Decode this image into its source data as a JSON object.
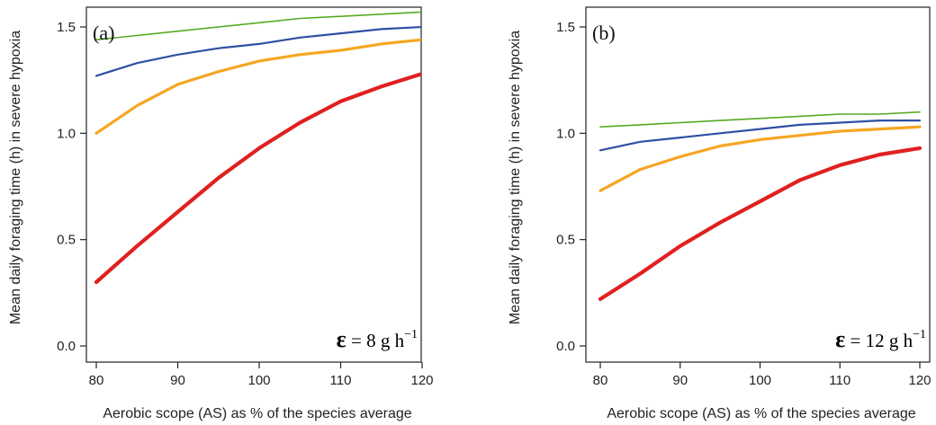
{
  "chart_data": [
    {
      "type": "line",
      "panel_label": "(a)",
      "xlabel": "Aerobic scope (AS) as % of the species average",
      "ylabel": "Mean daily foraging time (h) in severe hypoxia",
      "xlim": [
        80,
        120
      ],
      "ylim": [
        0,
        1.5
      ],
      "xticks": [
        80,
        90,
        100,
        110,
        120
      ],
      "xtick_labels": [
        "80",
        "90",
        "100",
        "110",
        "120"
      ],
      "yticks": [
        0.0,
        0.5,
        1.0,
        1.5
      ],
      "ytick_labels": [
        "0.0",
        "0.5",
        "1.0",
        "1.5"
      ],
      "grid": false,
      "annotation": {
        "symbol": "ε",
        "text": " = 8 g h",
        "sup": "−1"
      },
      "x": [
        80,
        85,
        90,
        95,
        100,
        105,
        110,
        115,
        120
      ],
      "series": [
        {
          "color": "#55aa22",
          "width": 1.6,
          "values": [
            1.44,
            1.46,
            1.48,
            1.5,
            1.52,
            1.54,
            1.55,
            1.56,
            1.57
          ]
        },
        {
          "color": "#2f4fa3",
          "width": 2.2,
          "values": [
            1.27,
            1.33,
            1.37,
            1.4,
            1.42,
            1.45,
            1.47,
            1.49,
            1.5
          ]
        },
        {
          "color": "#f5a623",
          "width": 3.2,
          "values": [
            1.0,
            1.13,
            1.23,
            1.29,
            1.34,
            1.37,
            1.39,
            1.42,
            1.44
          ]
        },
        {
          "color": "#e02020",
          "width": 4.2,
          "values": [
            0.3,
            0.47,
            0.63,
            0.79,
            0.93,
            1.05,
            1.15,
            1.22,
            1.28
          ]
        }
      ]
    },
    {
      "type": "line",
      "panel_label": "(b)",
      "xlabel": "Aerobic scope (AS) as % of the species average",
      "ylabel": "Mean daily foraging time (h) in severe hypoxia",
      "xlim": [
        80,
        120
      ],
      "ylim": [
        0,
        1.5
      ],
      "xticks": [
        80,
        90,
        100,
        110,
        120
      ],
      "xtick_labels": [
        "80",
        "90",
        "100",
        "110",
        "120"
      ],
      "yticks": [
        0.0,
        0.5,
        1.0,
        1.5
      ],
      "ytick_labels": [
        "0.0",
        "0.5",
        "1.0",
        "1.5"
      ],
      "grid": false,
      "annotation": {
        "symbol": "ε",
        "text": " = 12 g h",
        "sup": "−1"
      },
      "x": [
        80,
        85,
        90,
        95,
        100,
        105,
        110,
        115,
        120
      ],
      "series": [
        {
          "color": "#55aa22",
          "width": 1.6,
          "values": [
            1.03,
            1.04,
            1.05,
            1.06,
            1.07,
            1.08,
            1.09,
            1.09,
            1.1
          ]
        },
        {
          "color": "#2f4fa3",
          "width": 2.2,
          "values": [
            0.92,
            0.96,
            0.98,
            1.0,
            1.02,
            1.04,
            1.05,
            1.06,
            1.06
          ]
        },
        {
          "color": "#f5a623",
          "width": 3.2,
          "values": [
            0.73,
            0.83,
            0.89,
            0.94,
            0.97,
            0.99,
            1.01,
            1.02,
            1.03
          ]
        },
        {
          "color": "#e02020",
          "width": 4.2,
          "values": [
            0.22,
            0.34,
            0.47,
            0.58,
            0.68,
            0.78,
            0.85,
            0.9,
            0.93
          ]
        }
      ]
    }
  ]
}
